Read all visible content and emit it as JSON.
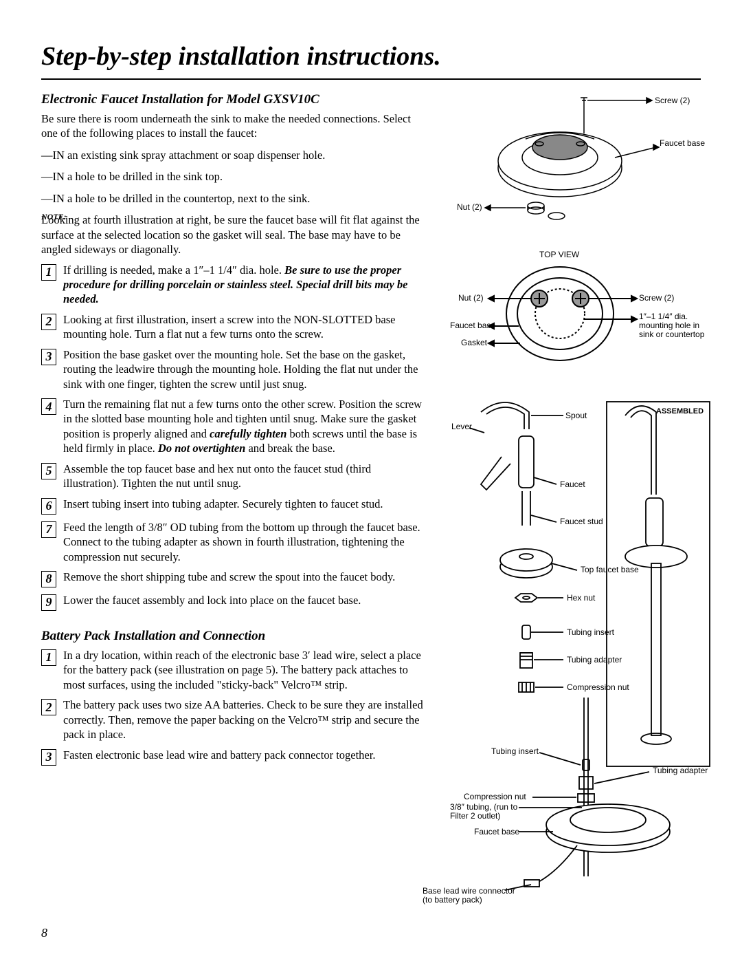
{
  "page": {
    "title": "Step-by-step installation instructions.",
    "number": "8"
  },
  "section1": {
    "title": "Electronic Faucet Installation for Model GXSV10C",
    "intro": "Be sure there is room underneath the sink to make the needed connections. Select one of the following places to install the faucet:",
    "bullets": [
      "—IN an existing sink spray attachment or soap dispenser hole.",
      "—IN a hole to be drilled in the sink top.",
      "—IN a hole to be drilled in the countertop, next to the sink."
    ],
    "note_label": "NOTE:",
    "note": " Looking at fourth illustration at right, be sure the faucet base will fit flat against the surface at the selected location so the gasket will seal. The base may have to be angled sideways or diagonally.",
    "steps": [
      {
        "n": "1",
        "pre": "If drilling is needed, make a 1″–1 1/4″ dia. hole. ",
        "bold": "Be sure to use the proper procedure for drilling porcelain or stainless steel. Special drill bits may be needed.",
        "post": ""
      },
      {
        "n": "2",
        "pre": "Looking at first illustration, insert a screw into the NON-SLOTTED base mounting hole. Turn a flat nut a few turns onto the screw.",
        "bold": "",
        "post": ""
      },
      {
        "n": "3",
        "pre": "Position the base gasket over the mounting hole. Set the base on the gasket, routing the leadwire through the mounting hole. Holding the flat nut under the sink with one finger, tighten the screw until just snug.",
        "bold": "",
        "post": ""
      },
      {
        "n": "4",
        "pre": "Turn the remaining flat nut a few turns onto the other screw. Position the screw in the slotted base mounting hole and tighten until snug. Make sure the gasket position is properly aligned and ",
        "bold": "carefully tighten",
        "post": " both screws until the base is held firmly in place. ",
        "bold2": "Do not overtighten",
        "post2": " and break the base."
      },
      {
        "n": "5",
        "pre": "Assemble the top faucet base and hex nut onto the faucet stud (third illustration). Tighten the nut until snug.",
        "bold": "",
        "post": ""
      },
      {
        "n": "6",
        "pre": "Insert tubing insert into tubing adapter. Securely tighten to faucet stud.",
        "bold": "",
        "post": ""
      },
      {
        "n": "7",
        "pre": "Feed the length of 3/8″ OD tubing from the bottom up through the faucet base. Connect to the tubing adapter as shown in fourth illustration, tightening the compression nut securely.",
        "bold": "",
        "post": ""
      },
      {
        "n": "8",
        "pre": "Remove the short shipping tube and screw the spout into the faucet body.",
        "bold": "",
        "post": ""
      },
      {
        "n": "9",
        "pre": "Lower the faucet assembly and lock into place on the faucet base.",
        "bold": "",
        "post": ""
      }
    ]
  },
  "section2": {
    "title": "Battery Pack Installation and Connection",
    "steps": [
      {
        "n": "1",
        "pre": "In a dry location, within reach of the electronic base 3′ lead wire, select a place for the battery pack (see illustration on page 5). The battery pack attaches to most surfaces, using the included \"sticky-back\" Velcro™ strip.",
        "bold": "",
        "post": ""
      },
      {
        "n": "2",
        "pre": "The battery pack uses two size AA batteries. Check to be sure they are installed correctly. Then, remove the paper backing on the Velcro™ strip and secure the pack in place.",
        "bold": "",
        "post": ""
      },
      {
        "n": "3",
        "pre": "Fasten electronic base lead wire and battery pack connector together.",
        "bold": "",
        "post": ""
      }
    ]
  },
  "diagram1": {
    "labels": {
      "screw": "Screw (2)",
      "faucet_base": "Faucet base",
      "nut": "Nut (2)"
    },
    "colors": {
      "stroke": "#000000",
      "fill_light": "#ffffff",
      "fill_shade": "#6b6b6b"
    }
  },
  "diagram2": {
    "title": "TOP VIEW",
    "labels": {
      "nut": "Nut (2)",
      "screw": "Screw (2)",
      "faucet_base": "Faucet base",
      "gasket": "Gasket",
      "hole": "1″–1 1/4″ dia. mounting hole in sink or countertop"
    }
  },
  "diagram3": {
    "title": "ASSEMBLED",
    "labels": {
      "spout": "Spout",
      "lever": "Lever",
      "faucet": "Faucet",
      "faucet_stud": "Faucet stud",
      "top_faucet_base": "Top faucet base",
      "hex_nut": "Hex nut",
      "tubing_insert": "Tubing insert",
      "tubing_adapter": "Tubing adapter",
      "compression_nut": "Compression nut",
      "tubing_insert2": "Tubing insert",
      "tubing_adapter2": "Tubing adapter",
      "compression_nut2": "Compression nut",
      "tubing": "3/8″ tubing, (run to Filter 2 outlet)",
      "faucet_base": "Faucet base",
      "connector": "Base lead wire connector (to battery pack)"
    }
  }
}
